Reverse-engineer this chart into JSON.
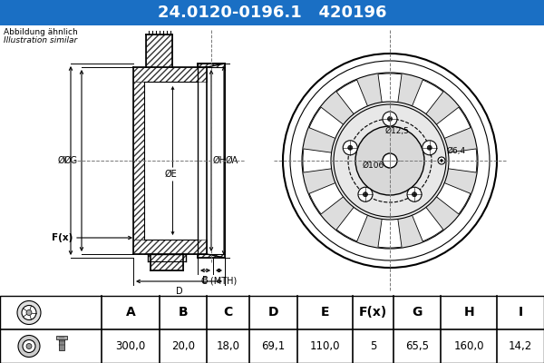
{
  "title_part_number": "24.0120-0196.1",
  "title_ref_number": "420196",
  "title_bg_color": "#1a6fc4",
  "title_text_color": "#ffffff",
  "subtitle_line1": "Abbildung ähnlich",
  "subtitle_line2": "Illustration similar",
  "bg_color": "#ccd9e8",
  "drawing_bg": "#ffffff",
  "table_headers": [
    "A",
    "B",
    "C",
    "D",
    "E",
    "F(x)",
    "G",
    "H",
    "I"
  ],
  "table_values": [
    "300,0",
    "20,0",
    "18,0",
    "69,1",
    "110,0",
    "5",
    "65,5",
    "160,0",
    "14,2"
  ],
  "line_color": "#000000",
  "dim_color": "#000000",
  "center_line_color": "#888888",
  "hatch_color": "#555555"
}
